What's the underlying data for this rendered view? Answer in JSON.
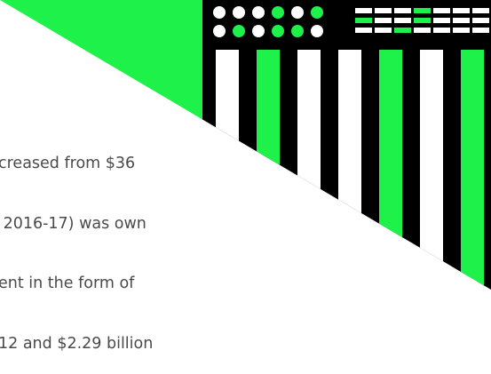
{
  "text_lines": [
    "creased from $36",
    " 2016-17) was own",
    "ent in the form of",
    "12 and $2.29 billion"
  ],
  "colors": {
    "green": "#1ef14a",
    "black": "#000000",
    "white": "#ffffff",
    "text": "#4a4a4a"
  },
  "decoration": {
    "dot_rows": [
      [
        "white",
        "white",
        "white",
        "green",
        "white",
        "green"
      ],
      [
        "white",
        "green",
        "white",
        "green",
        "green",
        "white"
      ]
    ],
    "stripe_rows": [
      [
        "white",
        "white",
        "white",
        "green",
        "white",
        "white",
        "white"
      ],
      [
        "green",
        "white",
        "white",
        "green",
        "white",
        "white",
        "white"
      ],
      [
        "white",
        "white",
        "green",
        "white",
        "white",
        "white",
        "white"
      ]
    ],
    "bar_fills": [
      "white",
      "green",
      "white",
      "white",
      "green",
      "white",
      "green"
    ]
  }
}
